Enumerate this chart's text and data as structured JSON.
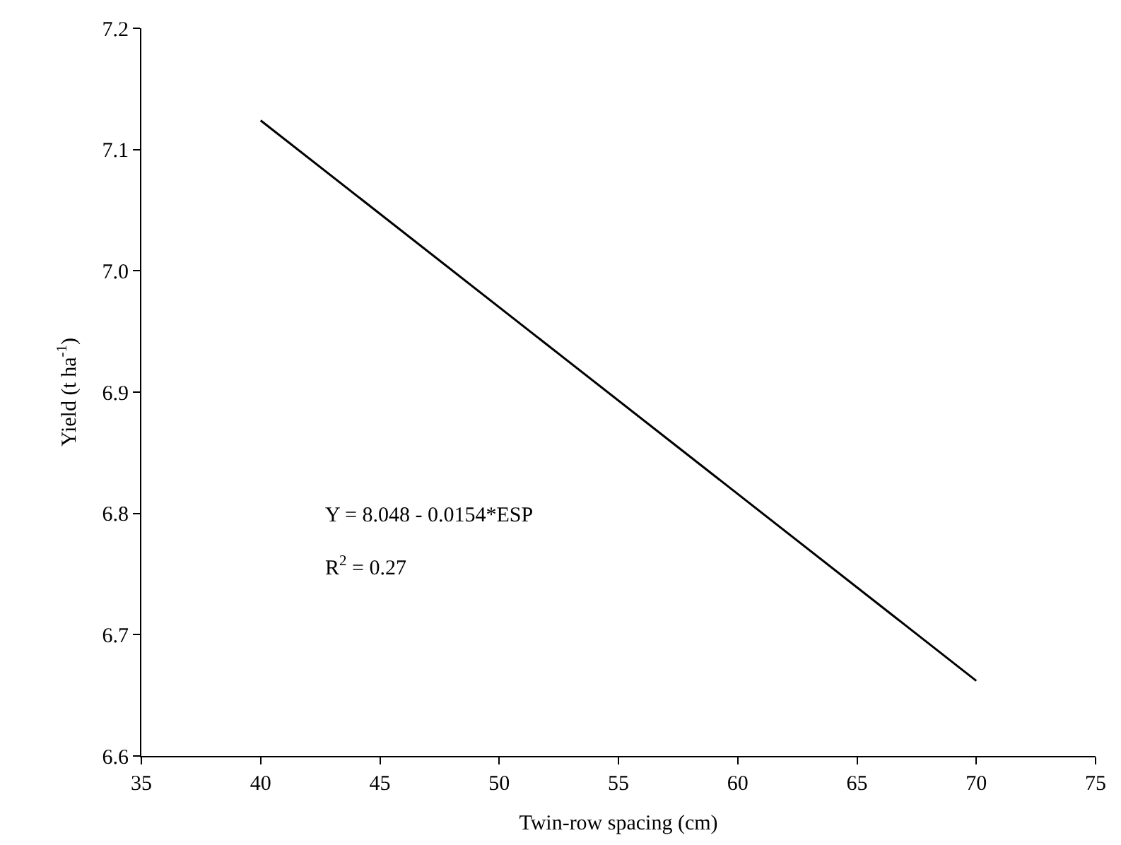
{
  "chart_data": {
    "type": "line",
    "xlabel": "Twin-row spacing (cm)",
    "ylabel": "Yield (t ha$^{-1}$)",
    "x": [
      40,
      70
    ],
    "series": [
      {
        "color": "#000000",
        "values": [
          7.124,
          6.662
        ]
      }
    ],
    "xlim": [
      35,
      75
    ],
    "xticks": [
      35,
      40,
      45,
      50,
      55,
      60,
      65,
      70,
      75
    ],
    "ylim": [
      6.6,
      7.2
    ],
    "yticks": [
      6.6,
      6.7,
      6.8,
      6.9,
      {
        "value": 7.0,
        "label": "7.0"
      },
      7.1,
      7.2
    ],
    "grid": false,
    "marker": "none",
    "line_style": "solid",
    "annotations": [
      "Y = 8.048 - 0.0154*ESP",
      "R$^{2}$ = 0.27"
    ]
  }
}
